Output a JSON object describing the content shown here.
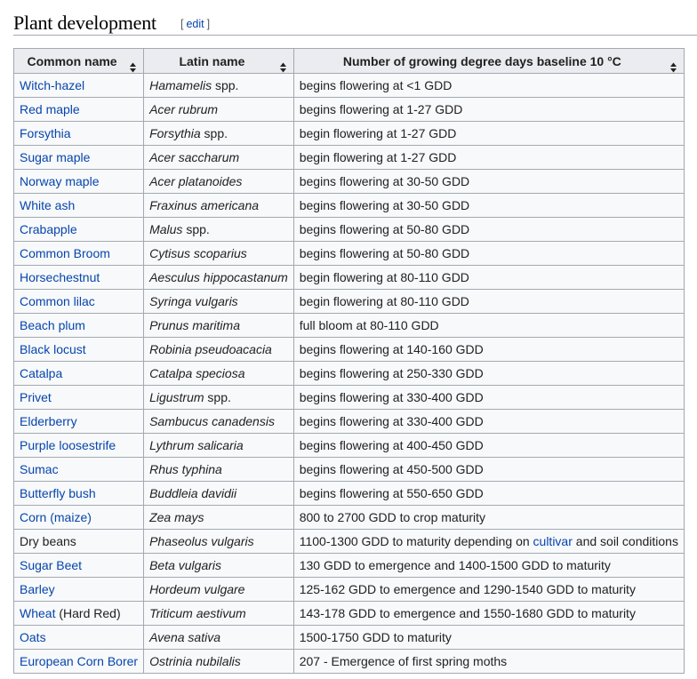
{
  "section": {
    "title": "Plant development",
    "edit_open": "[",
    "edit_label": "edit",
    "edit_close": "]"
  },
  "table": {
    "headers": [
      {
        "label": "Common name",
        "sort_icon": "sort-both-icon"
      },
      {
        "label": "Latin name",
        "sort_icon": "sort-both-icon"
      },
      {
        "label": "Number of growing degree days baseline 10 °C",
        "sort_icon": "sort-both-icon"
      }
    ],
    "rows": [
      {
        "common": "Witch-hazel",
        "common_suffix": "",
        "latin": "Hamamelis",
        "latin_suffix": " spp.",
        "gdd": "begins flowering at <1 GDD"
      },
      {
        "common": "Red maple",
        "common_suffix": "",
        "latin": "Acer rubrum",
        "latin_suffix": "",
        "gdd": "begins flowering at 1-27 GDD"
      },
      {
        "common": "Forsythia",
        "common_suffix": "",
        "latin": "Forsythia",
        "latin_suffix": " spp.",
        "gdd": "begin flowering at 1-27 GDD"
      },
      {
        "common": "Sugar maple",
        "common_suffix": "",
        "latin": "Acer saccharum",
        "latin_suffix": "",
        "gdd": "begin flowering at 1-27 GDD"
      },
      {
        "common": "Norway maple",
        "common_suffix": "",
        "latin": "Acer platanoides",
        "latin_suffix": "",
        "gdd": "begins flowering at 30-50 GDD"
      },
      {
        "common": "White ash",
        "common_suffix": "",
        "latin": "Fraxinus americana",
        "latin_suffix": "",
        "gdd": "begins flowering at 30-50 GDD"
      },
      {
        "common": "Crabapple",
        "common_suffix": "",
        "latin": "Malus",
        "latin_suffix": " spp.",
        "gdd": "begins flowering at 50-80 GDD"
      },
      {
        "common": "Common Broom",
        "common_suffix": "",
        "latin": "Cytisus scoparius",
        "latin_suffix": "",
        "gdd": "begins flowering at 50-80 GDD"
      },
      {
        "common": "Horsechestnut",
        "common_suffix": "",
        "latin": "Aesculus hippocastanum",
        "latin_suffix": "",
        "gdd": "begin flowering at 80-110 GDD"
      },
      {
        "common": "Common lilac",
        "common_suffix": "",
        "latin": "Syringa vulgaris",
        "latin_suffix": "",
        "gdd": "begin flowering at 80-110 GDD"
      },
      {
        "common": "Beach plum",
        "common_suffix": "",
        "latin": "Prunus maritima",
        "latin_suffix": "",
        "gdd": "full bloom at 80-110 GDD"
      },
      {
        "common": "Black locust",
        "common_suffix": "",
        "latin": "Robinia pseudoacacia",
        "latin_suffix": "",
        "gdd": "begins flowering at 140-160 GDD"
      },
      {
        "common": "Catalpa",
        "common_suffix": "",
        "latin": "Catalpa speciosa",
        "latin_suffix": "",
        "gdd": "begins flowering at 250-330 GDD"
      },
      {
        "common": "Privet",
        "common_suffix": "",
        "latin": "Ligustrum",
        "latin_suffix": " spp.",
        "gdd": "begins flowering at 330-400 GDD"
      },
      {
        "common": "Elderberry",
        "common_suffix": "",
        "latin": "Sambucus canadensis",
        "latin_suffix": "",
        "gdd": "begins flowering at 330-400 GDD"
      },
      {
        "common": "Purple loosestrife",
        "common_suffix": "",
        "latin": "Lythrum salicaria",
        "latin_suffix": "",
        "gdd": "begins flowering at 400-450 GDD"
      },
      {
        "common": "Sumac",
        "common_suffix": "",
        "latin": "Rhus typhina",
        "latin_suffix": "",
        "gdd": "begins flowering at 450-500 GDD"
      },
      {
        "common": "Butterfly bush",
        "common_suffix": "",
        "latin": "Buddleia davidii",
        "latin_suffix": "",
        "gdd": "begins flowering at 550-650 GDD"
      },
      {
        "common": "Corn (maize)",
        "common_suffix": "",
        "latin": "Zea mays",
        "latin_suffix": "",
        "gdd": "800 to 2700 GDD to crop maturity"
      },
      {
        "common": "Dry beans",
        "common_suffix": "",
        "common_plain": true,
        "latin": "Phaseolus vulgaris",
        "latin_suffix": "",
        "gdd_pre": "1100-1300 GDD to maturity depending on ",
        "gdd_link": "cultivar",
        "gdd_post": " and soil conditions"
      },
      {
        "common": "Sugar Beet",
        "common_suffix": "",
        "latin": "Beta vulgaris",
        "latin_suffix": "",
        "gdd": "130 GDD to emergence and 1400-1500 GDD to maturity"
      },
      {
        "common": "Barley",
        "common_suffix": "",
        "latin": "Hordeum vulgare",
        "latin_suffix": "",
        "gdd": "125-162 GDD to emergence and 1290-1540 GDD to maturity"
      },
      {
        "common": "Wheat",
        "common_suffix": " (Hard Red)",
        "latin": "Triticum aestivum",
        "latin_suffix": "",
        "gdd": "143-178 GDD to emergence and 1550-1680 GDD to maturity"
      },
      {
        "common": "Oats",
        "common_suffix": "",
        "latin": "Avena sativa",
        "latin_suffix": "",
        "gdd": "1500-1750 GDD to maturity"
      },
      {
        "common": "European Corn Borer",
        "common_suffix": "",
        "latin": "Ostrinia nubilalis",
        "latin_suffix": "",
        "gdd": "207 - Emergence of first spring moths"
      }
    ]
  },
  "colors": {
    "link": "#0645ad",
    "header_bg": "#eaecf0",
    "cell_bg": "#f8f9fa",
    "border": "#a2a9b1",
    "text": "#202122"
  }
}
